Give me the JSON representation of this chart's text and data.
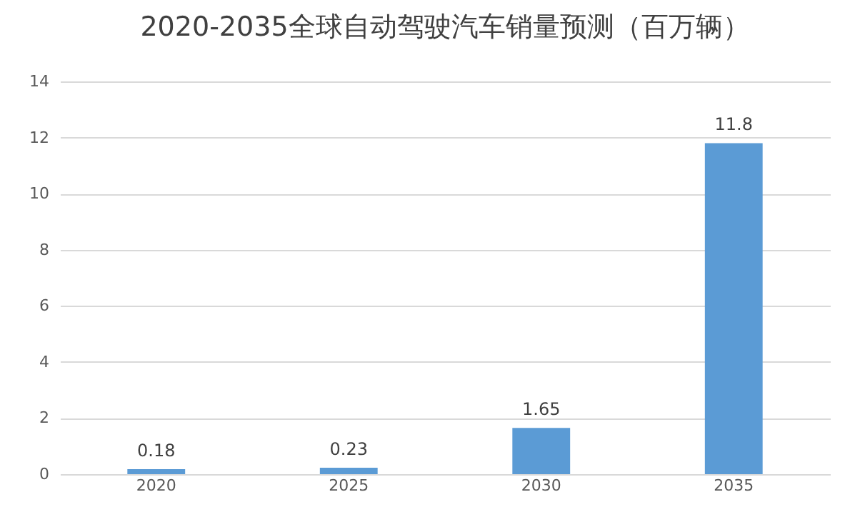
{
  "chart_data": {
    "type": "bar",
    "title": "2020-2035全球自动驾驶汽车销量预测（百万辆）",
    "categories": [
      "2020",
      "2025",
      "2030",
      "2035"
    ],
    "values": [
      0.18,
      0.23,
      1.65,
      11.8
    ],
    "color": "#5b9bd5",
    "ylim": [
      0,
      14
    ],
    "yticks": [
      0,
      2,
      4,
      6,
      8,
      10,
      12,
      14
    ],
    "grid": "y",
    "data_labels": true
  }
}
